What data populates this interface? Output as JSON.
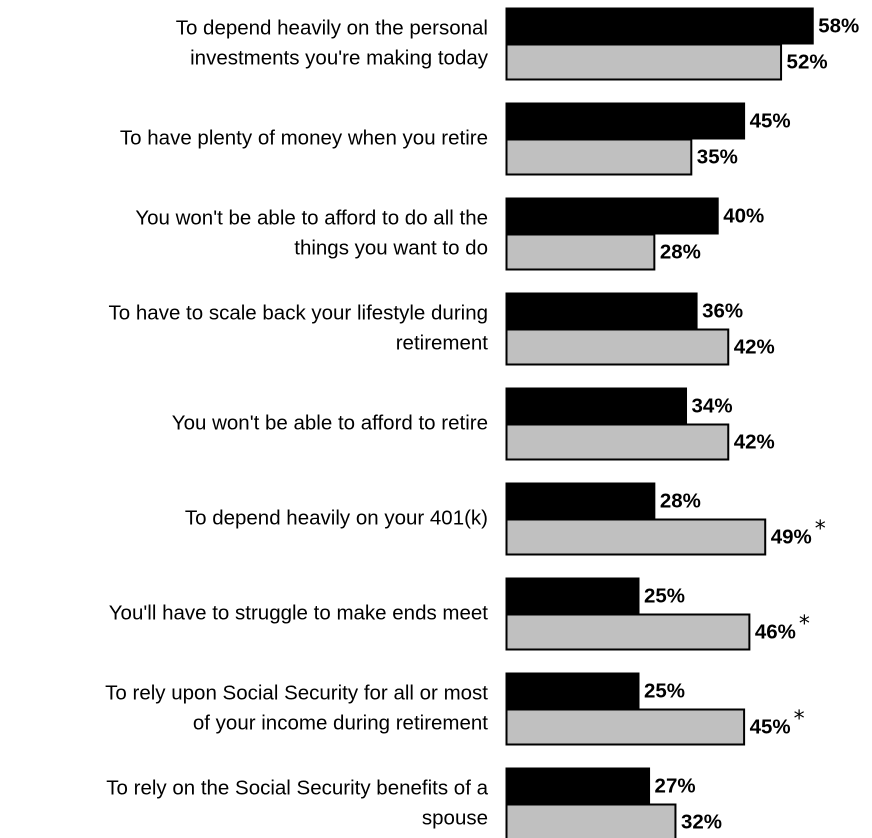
{
  "chart_data": {
    "type": "bar",
    "orientation": "horizontal",
    "title": "",
    "xlabel": "",
    "ylabel": "",
    "grid": false,
    "legend": "none",
    "categories": [
      [
        "To depend heavily on the personal",
        "investments you're making today"
      ],
      [
        "To have plenty of money when you retire"
      ],
      [
        "You won't be able to afford to do all the",
        "things you want to do"
      ],
      [
        "To have to scale back your lifestyle during",
        "retirement"
      ],
      [
        "You won't be able to afford to retire"
      ],
      [
        "To depend heavily on your 401(k)"
      ],
      [
        "You'll have to struggle to make ends meet"
      ],
      [
        "To rely upon Social Security for all or most",
        "of your income during retirement"
      ],
      [
        "To rely on the Social Security benefits of a",
        "spouse"
      ]
    ],
    "series": [
      {
        "color": "#000000",
        "values": [
          58,
          45,
          40,
          36,
          34,
          28,
          25,
          25,
          27
        ],
        "labels": [
          "58%",
          "45%",
          "40%",
          "36%",
          "34%",
          "28%",
          "25%",
          "25%",
          "27%"
        ]
      },
      {
        "color": "#c0c0c0",
        "values": [
          52,
          35,
          28,
          42,
          42,
          49,
          46,
          45,
          32
        ],
        "labels": [
          "52%",
          "35%",
          "28%",
          "42%",
          "42%",
          "49%",
          "46%",
          "45%",
          "32%"
        ],
        "markers": [
          "",
          "",
          "",
          "",
          "",
          "*",
          "*",
          "*",
          ""
        ]
      }
    ],
    "xlim": [
      0,
      58
    ]
  }
}
